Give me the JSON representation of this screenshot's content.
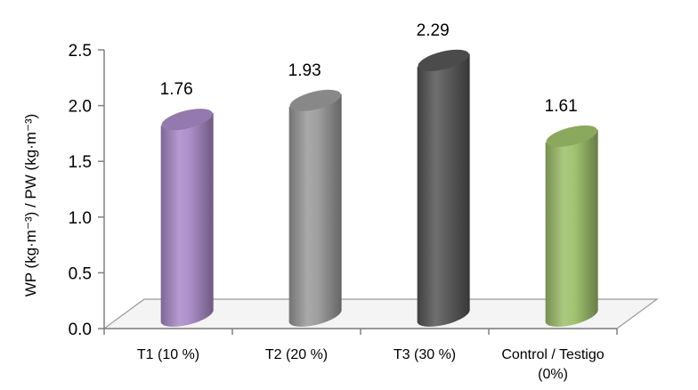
{
  "chart_data": {
    "type": "bar",
    "style": "3d-cylinder",
    "title": "",
    "xlabel": "",
    "ylabel": "WP (kg·m⁻³) / PW (kg·m⁻³)",
    "ylim": [
      0,
      2.5
    ],
    "yticks": [
      "0.0",
      "0.5",
      "1.0",
      "1.5",
      "2.0",
      "2.5"
    ],
    "categories": [
      [
        "T1 (10 %)"
      ],
      [
        "T2 (20 %)"
      ],
      [
        "T3 (30 %)"
      ],
      [
        "Control / Testigo",
        "(0%)"
      ]
    ],
    "values": [
      1.76,
      1.93,
      2.29,
      1.61
    ],
    "data_labels": [
      "1.76",
      "1.93",
      "2.29",
      "1.61"
    ],
    "colors": [
      "#a889c6",
      "#9a9a9a",
      "#555555",
      "#9dc06a"
    ],
    "grid": false,
    "legend": "none"
  }
}
